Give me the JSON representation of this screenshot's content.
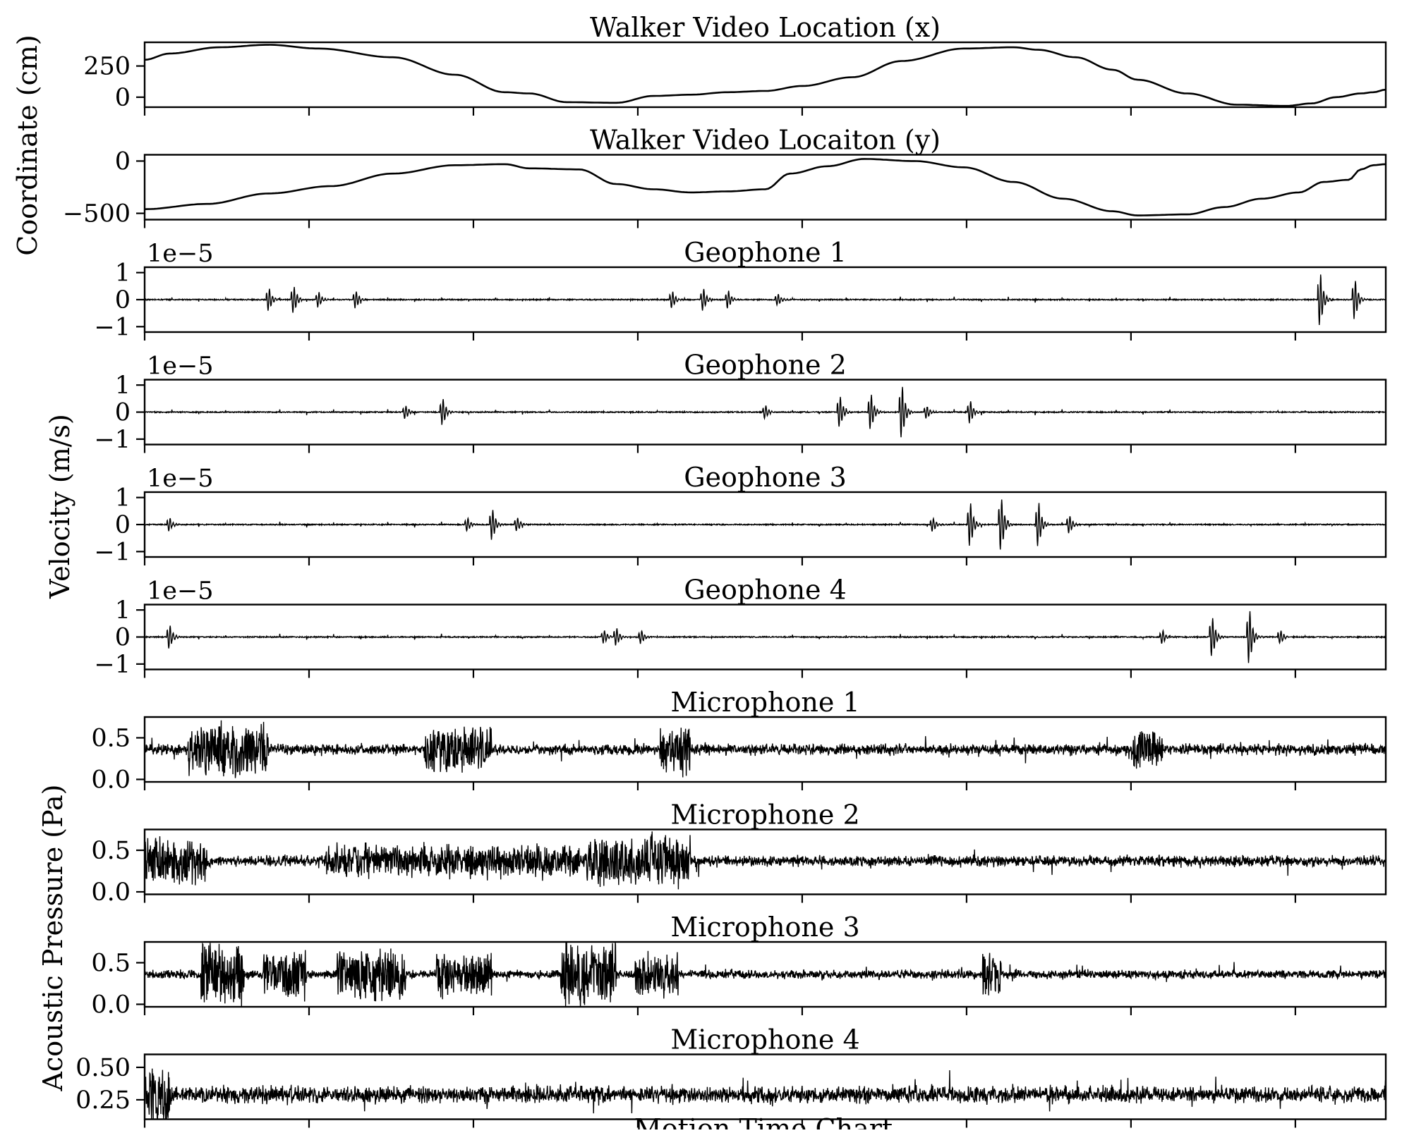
{
  "figure": {
    "ylabels": [
      "Coordinate (cm)",
      "Velocity (m/s)",
      "Acoustic Pressure (Pa)"
    ],
    "xlabel": "Motion Time Chart"
  },
  "chart_data": [
    {
      "type": "line",
      "title": "Walker Video Location (x)",
      "ylim": [
        -80,
        440
      ],
      "yticks": [
        {
          "v": 250,
          "label": "250"
        },
        {
          "v": 0,
          "label": "0"
        }
      ],
      "offset_label": "",
      "color": "#000000",
      "series": [
        {
          "signal": "smooth",
          "x": [
            0,
            0.02,
            0.06,
            0.1,
            0.14,
            0.2,
            0.25,
            0.29,
            0.31,
            0.34,
            0.38,
            0.41,
            0.44,
            0.47,
            0.5,
            0.53,
            0.57,
            0.61,
            0.66,
            0.7,
            0.72,
            0.75,
            0.78,
            0.8,
            0.84,
            0.88,
            0.92,
            0.94,
            0.96,
            0.98,
            0.99,
            1.0
          ],
          "values": [
            300,
            350,
            400,
            420,
            390,
            320,
            180,
            40,
            30,
            -40,
            -45,
            10,
            20,
            40,
            50,
            90,
            160,
            290,
            390,
            400,
            380,
            320,
            220,
            140,
            30,
            -60,
            -70,
            -50,
            0,
            30,
            40,
            60
          ]
        }
      ]
    },
    {
      "type": "line",
      "title": "Walker Video Locaiton (y)",
      "ylim": [
        -560,
        60
      ],
      "yticks": [
        {
          "v": 0,
          "label": "0"
        },
        {
          "v": -500,
          "label": "−500"
        }
      ],
      "offset_label": "",
      "color": "#000000",
      "series": [
        {
          "signal": "smooth",
          "x": [
            0,
            0.05,
            0.1,
            0.15,
            0.2,
            0.25,
            0.29,
            0.31,
            0.35,
            0.38,
            0.41,
            0.44,
            0.47,
            0.5,
            0.52,
            0.55,
            0.58,
            0.62,
            0.66,
            0.7,
            0.74,
            0.78,
            0.8,
            0.84,
            0.87,
            0.9,
            0.93,
            0.95,
            0.97,
            0.98,
            0.99,
            1.0
          ],
          "values": [
            -460,
            -410,
            -310,
            -240,
            -120,
            -40,
            -30,
            -70,
            -80,
            -220,
            -270,
            -300,
            -290,
            -270,
            -120,
            -50,
            20,
            0,
            -60,
            -200,
            -360,
            -480,
            -520,
            -510,
            -440,
            -360,
            -300,
            -200,
            -180,
            -80,
            -40,
            -30
          ]
        }
      ]
    },
    {
      "type": "line",
      "title": "Geophone 1",
      "ylim": [
        -1.2,
        1.2
      ],
      "yticks": [
        {
          "v": 1,
          "label": "1"
        },
        {
          "v": 0,
          "label": "0"
        },
        {
          "v": -1,
          "label": "−1"
        }
      ],
      "offset_label": "1e−5",
      "color": "#000000",
      "series": [
        {
          "signal": "impulse",
          "noise": 0.02,
          "step_amp": 0.1,
          "events": [
            {
              "x": 0.1,
              "a": 0.5
            },
            {
              "x": 0.12,
              "a": 0.6
            },
            {
              "x": 0.14,
              "a": 0.35
            },
            {
              "x": 0.17,
              "a": 0.4
            },
            {
              "x": 0.425,
              "a": 0.4
            },
            {
              "x": 0.45,
              "a": 0.5
            },
            {
              "x": 0.47,
              "a": 0.4
            },
            {
              "x": 0.51,
              "a": 0.25
            },
            {
              "x": 0.947,
              "a": 1.2
            },
            {
              "x": 0.975,
              "a": 0.9
            }
          ]
        }
      ]
    },
    {
      "type": "line",
      "title": "Geophone 2",
      "ylim": [
        -1.2,
        1.2
      ],
      "yticks": [
        {
          "v": 1,
          "label": "1"
        },
        {
          "v": 0,
          "label": "0"
        },
        {
          "v": -1,
          "label": "−1"
        }
      ],
      "offset_label": "1e−5",
      "color": "#000000",
      "series": [
        {
          "signal": "impulse",
          "noise": 0.02,
          "step_amp": 0.1,
          "events": [
            {
              "x": 0.21,
              "a": 0.3
            },
            {
              "x": 0.24,
              "a": 0.6
            },
            {
              "x": 0.5,
              "a": 0.3
            },
            {
              "x": 0.56,
              "a": 0.7
            },
            {
              "x": 0.585,
              "a": 0.8
            },
            {
              "x": 0.61,
              "a": 1.2
            },
            {
              "x": 0.63,
              "a": 0.3
            },
            {
              "x": 0.665,
              "a": 0.5
            }
          ]
        }
      ]
    },
    {
      "type": "line",
      "title": "Geophone 3",
      "ylim": [
        -1.2,
        1.2
      ],
      "yticks": [
        {
          "v": 1,
          "label": "1"
        },
        {
          "v": 0,
          "label": "0"
        },
        {
          "v": -1,
          "label": "−1"
        }
      ],
      "offset_label": "1e−5",
      "color": "#000000",
      "series": [
        {
          "signal": "impulse",
          "noise": 0.02,
          "step_amp": 0.1,
          "events": [
            {
              "x": 0.02,
              "a": 0.3
            },
            {
              "x": 0.26,
              "a": 0.3
            },
            {
              "x": 0.28,
              "a": 0.7
            },
            {
              "x": 0.3,
              "a": 0.3
            },
            {
              "x": 0.635,
              "a": 0.3
            },
            {
              "x": 0.665,
              "a": 1.0
            },
            {
              "x": 0.69,
              "a": 1.2
            },
            {
              "x": 0.72,
              "a": 1.0
            },
            {
              "x": 0.745,
              "a": 0.4
            }
          ]
        }
      ]
    },
    {
      "type": "line",
      "title": "Geophone 4",
      "ylim": [
        -1.2,
        1.2
      ],
      "yticks": [
        {
          "v": 1,
          "label": "1"
        },
        {
          "v": 0,
          "label": "0"
        },
        {
          "v": -1,
          "label": "−1"
        }
      ],
      "offset_label": "1e−5",
      "color": "#000000",
      "series": [
        {
          "signal": "impulse",
          "noise": 0.02,
          "step_amp": 0.1,
          "events": [
            {
              "x": 0.02,
              "a": 0.55
            },
            {
              "x": 0.37,
              "a": 0.3
            },
            {
              "x": 0.38,
              "a": 0.4
            },
            {
              "x": 0.4,
              "a": 0.3
            },
            {
              "x": 0.82,
              "a": 0.3
            },
            {
              "x": 0.86,
              "a": 0.9
            },
            {
              "x": 0.89,
              "a": 1.2
            },
            {
              "x": 0.915,
              "a": 0.3
            }
          ]
        }
      ]
    },
    {
      "type": "line",
      "title": "Microphone 1",
      "ylim": [
        -0.03,
        0.75
      ],
      "yticks": [
        {
          "v": 0.5,
          "label": "0.5"
        },
        {
          "v": 0.0,
          "label": "0.0"
        }
      ],
      "offset_label": "",
      "color": "#000000",
      "series": [
        {
          "signal": "noise",
          "base": 0.36,
          "noise": 0.05,
          "bursts": [
            {
              "x": 0.04,
              "w": 0.06,
              "a": 0.35
            },
            {
              "x": 0.23,
              "w": 0.05,
              "a": 0.3
            },
            {
              "x": 0.42,
              "w": 0.02,
              "a": 0.3
            },
            {
              "x": 0.8,
              "w": 0.02,
              "a": 0.25
            }
          ]
        }
      ]
    },
    {
      "type": "line",
      "title": "Microphone 2",
      "ylim": [
        -0.03,
        0.75
      ],
      "yticks": [
        {
          "v": 0.5,
          "label": "0.5"
        },
        {
          "v": 0.0,
          "label": "0.0"
        }
      ],
      "offset_label": "",
      "color": "#000000",
      "series": [
        {
          "signal": "noise",
          "base": 0.37,
          "noise": 0.05,
          "bursts": [
            {
              "x": 0.0,
              "w": 0.05,
              "a": 0.3
            },
            {
              "x": 0.15,
              "w": 0.2,
              "a": 0.2
            },
            {
              "x": 0.36,
              "w": 0.08,
              "a": 0.35
            }
          ]
        }
      ]
    },
    {
      "type": "line",
      "title": "Microphone 3",
      "ylim": [
        -0.03,
        0.75
      ],
      "yticks": [
        {
          "v": 0.5,
          "label": "0.5"
        },
        {
          "v": 0.0,
          "label": "0.0"
        }
      ],
      "offset_label": "",
      "color": "#000000",
      "series": [
        {
          "signal": "noise",
          "base": 0.36,
          "noise": 0.04,
          "bursts": [
            {
              "x": 0.05,
              "w": 0.03,
              "a": 0.4
            },
            {
              "x": 0.1,
              "w": 0.03,
              "a": 0.3
            },
            {
              "x": 0.16,
              "w": 0.05,
              "a": 0.35
            },
            {
              "x": 0.24,
              "w": 0.04,
              "a": 0.3
            },
            {
              "x": 0.34,
              "w": 0.04,
              "a": 0.45
            },
            {
              "x": 0.4,
              "w": 0.03,
              "a": 0.3
            },
            {
              "x": 0.68,
              "w": 0.01,
              "a": 0.3
            }
          ]
        }
      ]
    },
    {
      "type": "line",
      "title": "Microphone 4",
      "ylim": [
        0.1,
        0.6
      ],
      "yticks": [
        {
          "v": 0.5,
          "label": "0.50"
        },
        {
          "v": 0.25,
          "label": "0.25"
        }
      ],
      "offset_label": "",
      "color": "#000000",
      "series": [
        {
          "signal": "noise",
          "base": 0.29,
          "noise": 0.05,
          "bursts": [
            {
              "x": 0.0,
              "w": 0.02,
              "a": 0.25
            }
          ]
        }
      ]
    }
  ]
}
